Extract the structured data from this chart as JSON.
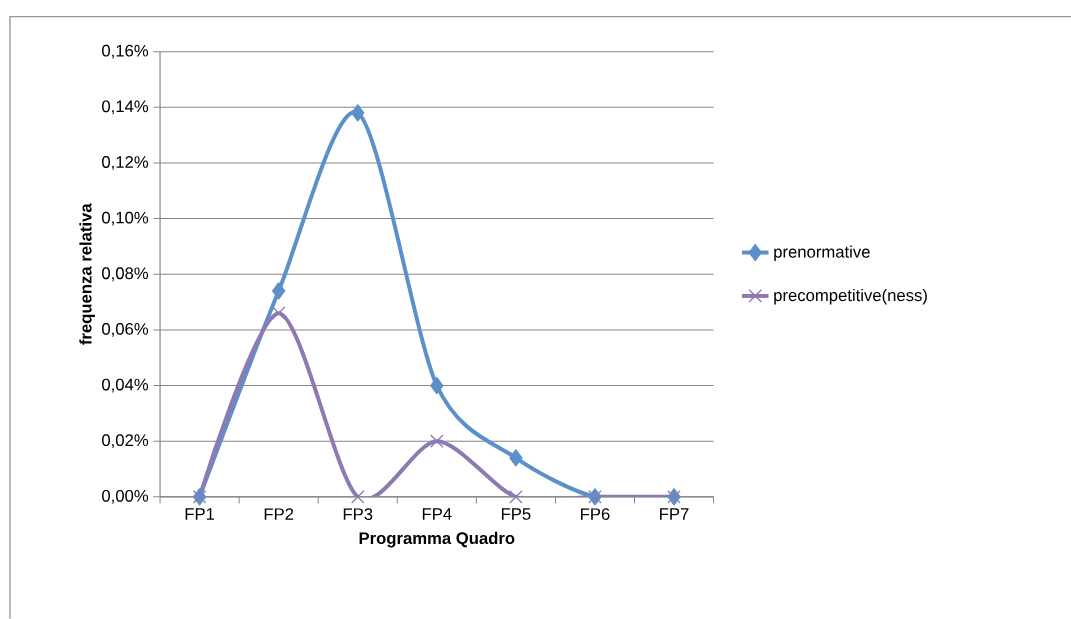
{
  "chart_data": {
    "type": "line",
    "xlabel": "Programma Quadro",
    "ylabel": "frequenza relativa",
    "categories": [
      "FP1",
      "FP2",
      "FP3",
      "FP4",
      "FP5",
      "FP6",
      "FP7"
    ],
    "series": [
      {
        "name": "prenormative",
        "color": "#5b91c8",
        "marker": "diamond",
        "values": [
          0,
          0.074,
          0.138,
          0.04,
          0.014,
          0,
          0
        ]
      },
      {
        "name": "precompetitive(ness)",
        "color": "#8f79b3",
        "marker": "cross",
        "values": [
          0,
          0.066,
          0,
          0.02,
          0,
          0,
          0
        ]
      }
    ],
    "ylim": [
      0,
      0.16
    ],
    "yticks": [
      {
        "value": 0,
        "label": "0,00%"
      },
      {
        "value": 0.02,
        "label": "0,02%"
      },
      {
        "value": 0.04,
        "label": "0,04%"
      },
      {
        "value": 0.06,
        "label": "0,06%"
      },
      {
        "value": 0.08,
        "label": "0,08%"
      },
      {
        "value": 0.1,
        "label": "0,10%"
      },
      {
        "value": 0.12,
        "label": "0,12%"
      },
      {
        "value": 0.14,
        "label": "0,14%"
      },
      {
        "value": 0.16,
        "label": "0,16%"
      }
    ],
    "grid": "y",
    "legend": "right"
  }
}
